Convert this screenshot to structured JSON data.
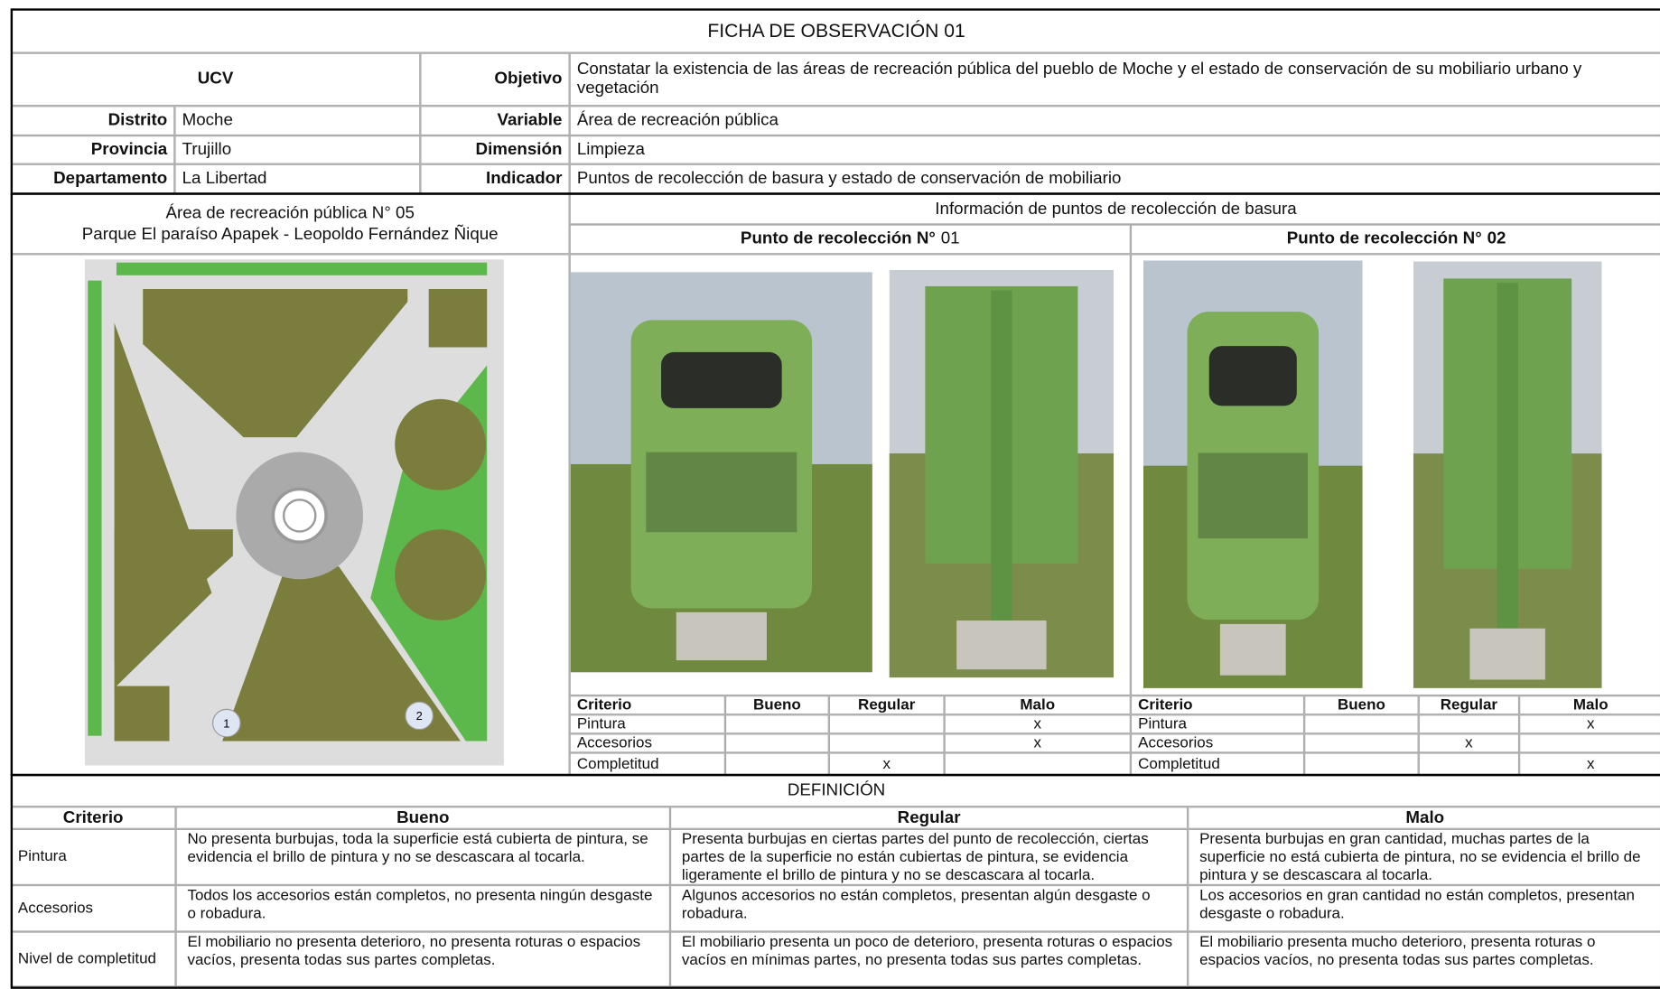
{
  "title": "FICHA DE OBSERVACIÓN 01",
  "general": {
    "institution": "UCV",
    "fields": [
      {
        "label": "Distrito",
        "value": "Moche"
      },
      {
        "label": "Provincia",
        "value": "Trujillo"
      },
      {
        "label": "Departamento",
        "value": "La Libertad"
      }
    ],
    "study": [
      {
        "label": "Objetivo",
        "value": "Constatar la existencia de las áreas de recreación pública del pueblo de Moche y el estado de conservación de su mobiliario urbano y vegetación"
      },
      {
        "label": "Variable",
        "value": "Área de recreación pública"
      },
      {
        "label": "Dimensión",
        "value": "Limpieza"
      },
      {
        "label": "Indicador",
        "value": "Puntos de recolección de basura y estado de conservación de mobiliario"
      }
    ]
  },
  "area": {
    "title": "Área de recreación pública N° 05",
    "name": "Parque El paraíso Apapek - Leopoldo Fernández Ñique",
    "plan_markers": [
      "1",
      "2"
    ]
  },
  "collection": {
    "title": "Información de puntos de recolección de basura",
    "header": [
      "Criterio",
      "Bueno",
      "Regular",
      "Malo"
    ],
    "points": [
      {
        "title": "Punto de recolección N°",
        "number": "01",
        "rows": [
          {
            "criterion": "Pintura",
            "rating": "Malo",
            "mark": "x"
          },
          {
            "criterion": "Accesorios",
            "rating": "Malo",
            "mark": "x"
          },
          {
            "criterion": "Completitud",
            "rating": "Regular",
            "mark": "x"
          }
        ]
      },
      {
        "title": "Punto de recolección N°",
        "number": "02",
        "rows": [
          {
            "criterion": "Pintura",
            "rating": "Malo",
            "mark": "x"
          },
          {
            "criterion": "Accesorios",
            "rating": "Regular",
            "mark": "x"
          },
          {
            "criterion": "Completitud",
            "rating": "Malo",
            "mark": "x"
          }
        ]
      }
    ]
  },
  "definition": {
    "title": "DEFINICIÓN",
    "header": [
      "Criterio",
      "Bueno",
      "Regular",
      "Malo"
    ],
    "rows": [
      [
        "Pintura",
        "No presenta burbujas, toda la superficie está cubierta de pintura, se evidencia el brillo de pintura y no se descascara al tocarla.",
        "Presenta burbujas en ciertas partes del punto de recolección, ciertas partes de la superficie no están cubiertas de pintura, se evidencia ligeramente el brillo de pintura y no se descascara al tocarla.",
        "Presenta burbujas en gran cantidad, muchas partes de la superficie no está cubierta de pintura, no se evidencia el brillo de pintura y se descascara al tocarla."
      ],
      [
        "Accesorios",
        "Todos los accesorios están completos, no presenta ningún desgaste o robadura.",
        "Algunos accesorios no están completos, presentan algún desgaste o robadura.",
        "Los accesorios en gran cantidad no están completos, presentan desgaste o robadura."
      ],
      [
        "Nivel de completitud",
        "El mobiliario no presenta deterioro, no presenta roturas o espacios vacíos, presenta todas sus partes completas.",
        "El mobiliario presenta un poco de deterioro, presenta roturas o espacios vacíos en mínimas partes, no presenta todas sus partes completas.",
        "El mobiliario presenta mucho deterioro, presenta roturas o espacios vacíos, no presenta todas sus partes completas."
      ]
    ]
  }
}
